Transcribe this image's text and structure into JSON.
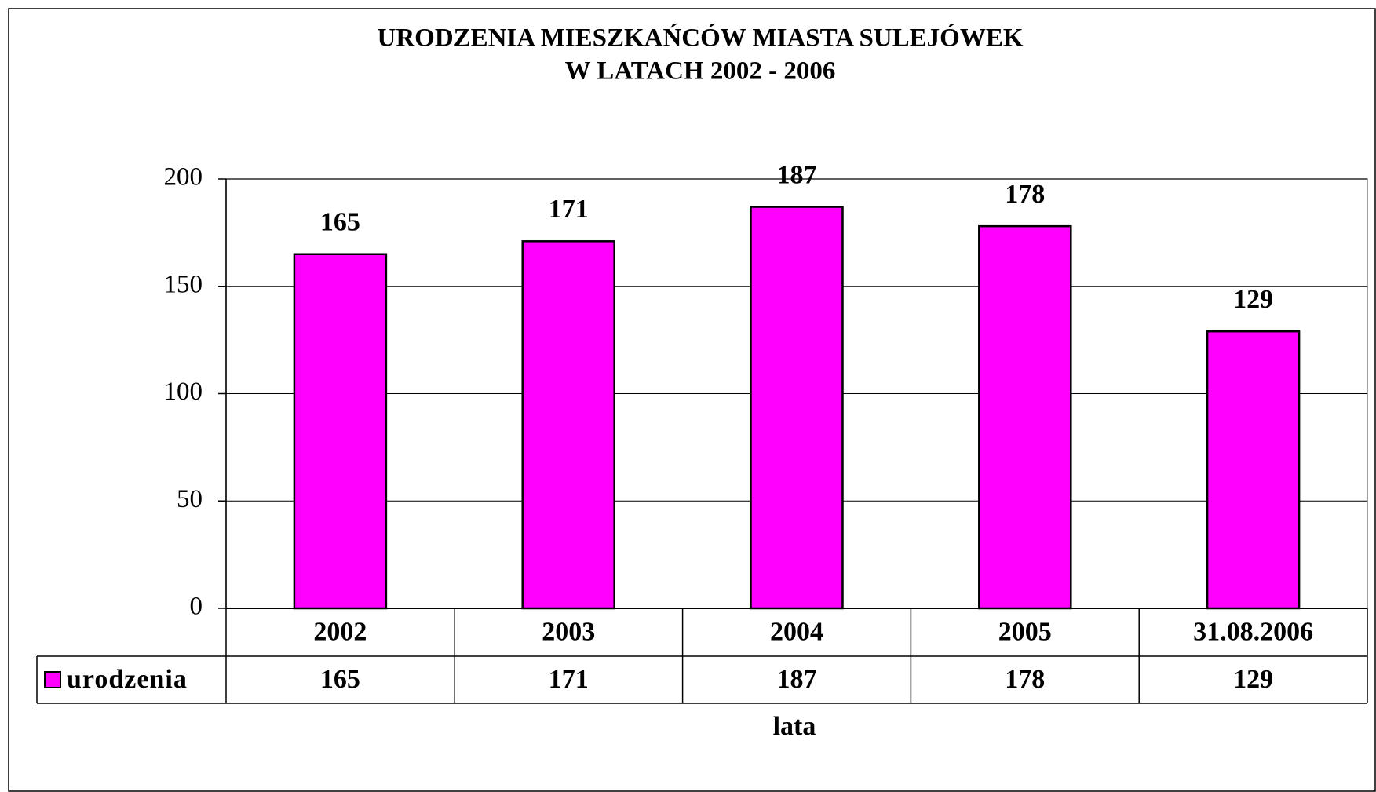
{
  "chart_data": {
    "type": "bar",
    "title": [
      "URODZENIA MIESZKAŃCÓW MIASTA SULEJÓWEK",
      "W LATACH 2002 - 2006"
    ],
    "xlabel": "lata",
    "categories": [
      "2002",
      "2003",
      "2004",
      "2005",
      "31.08.2006"
    ],
    "series": [
      {
        "name": "urodzenia",
        "color": "#ff00ff",
        "values": [
          165,
          171,
          187,
          178,
          129
        ]
      }
    ],
    "ylim": [
      0,
      200
    ],
    "yticks": [
      0,
      50,
      100,
      150,
      200
    ],
    "grid": true
  }
}
